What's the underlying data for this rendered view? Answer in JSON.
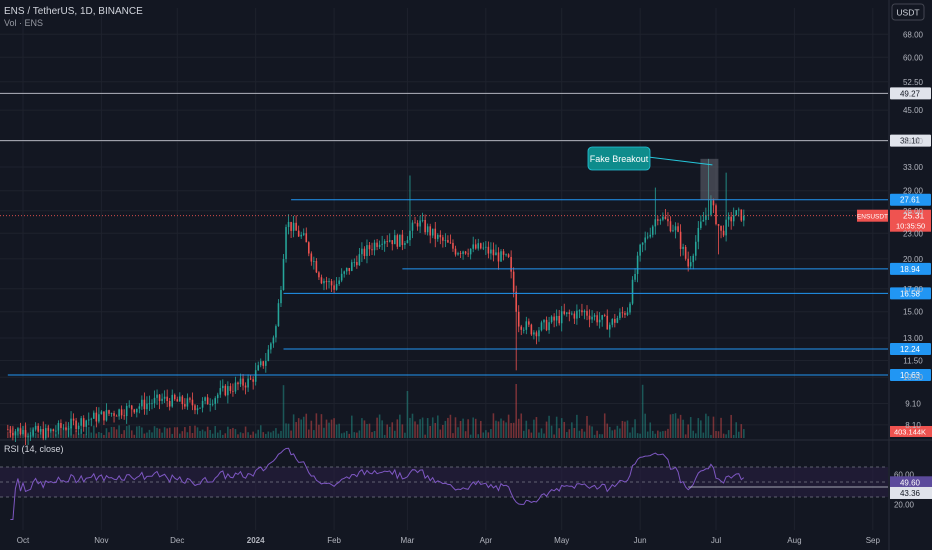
{
  "header": {
    "symbol_line": "ENS / TetherUS, 1D, BINANCE",
    "volume_label": "Vol · ENS",
    "currency_button": "USDT"
  },
  "colors": {
    "background": "#131722",
    "grid": "#1e222d",
    "up": "#26a69a",
    "down": "#ef5350",
    "level_line": "#2196f3",
    "ref_line": "#b2b5be",
    "rsi_line": "#7e57c2",
    "rsi_band": "#2a1f44",
    "callout": "#0e8c8c",
    "axis_text": "#b2b5be"
  },
  "chart_data": {
    "type": "candlestick",
    "symbol": "ENSUSDT",
    "price_axis": {
      "scale": "log",
      "ticks": [
        "68.00",
        "60.00",
        "52.50",
        "45.00",
        "38.00",
        "33.00",
        "29.00",
        "26.00",
        "23.00",
        "20.00",
        "17.00",
        "15.00",
        "13.00",
        "11.50",
        "10.50",
        "9.10",
        "8.10"
      ]
    },
    "time_axis": {
      "ticks": [
        "Oct",
        "Nov",
        "Dec",
        "2024",
        "Feb",
        "Mar",
        "Apr",
        "May",
        "Jun",
        "Jul",
        "Aug",
        "Sep"
      ]
    },
    "horizontal_levels": [
      {
        "value": 49.27,
        "label": "49.27",
        "style": "gray-full"
      },
      {
        "value": 38.1,
        "label": "38.10",
        "style": "gray-full"
      },
      {
        "value": 27.61,
        "label": "27.61",
        "style": "blue",
        "start": "2024-01-15"
      },
      {
        "value": 18.94,
        "label": "18.94",
        "style": "blue",
        "start": "2024-02-28"
      },
      {
        "value": 16.58,
        "label": "16.58",
        "style": "blue",
        "start": "2024-01-12"
      },
      {
        "value": 12.24,
        "label": "12.24",
        "style": "blue",
        "start": "2024-01-12"
      },
      {
        "value": 10.63,
        "label": "10.63",
        "style": "blue",
        "start": "2023-09-25"
      }
    ],
    "last_price": {
      "value": 25.31,
      "label": "25.31",
      "symbol_tag": "ENSUSDT",
      "countdown": "10:35:50"
    },
    "volume_label": "403.144K",
    "annotation": {
      "text": "Fake Breakout",
      "date": "2024-06-28",
      "low": 27.61,
      "high": 34.5
    },
    "anchors": [
      {
        "date": "2023-09-25",
        "close": 7.9
      },
      {
        "date": "2023-10-10",
        "close": 7.75
      },
      {
        "date": "2023-10-25",
        "close": 8.3
      },
      {
        "date": "2023-11-10",
        "close": 8.8
      },
      {
        "date": "2023-11-25",
        "close": 9.3
      },
      {
        "date": "2023-12-10",
        "close": 9.0
      },
      {
        "date": "2023-12-20",
        "close": 9.8
      },
      {
        "date": "2023-12-30",
        "close": 10.3
      },
      {
        "date": "2024-01-05",
        "close": 11.6
      },
      {
        "date": "2024-01-09",
        "close": 13.8
      },
      {
        "date": "2024-01-11",
        "close": 17.5
      },
      {
        "date": "2024-01-13",
        "close": 24.5
      },
      {
        "date": "2024-01-20",
        "close": 22.3
      },
      {
        "date": "2024-01-27",
        "close": 18.0
      },
      {
        "date": "2024-02-01",
        "close": 17.2
      },
      {
        "date": "2024-02-10",
        "close": 20.0
      },
      {
        "date": "2024-02-20",
        "close": 22.5
      },
      {
        "date": "2024-02-28",
        "close": 22.0
      },
      {
        "date": "2024-03-05",
        "close": 24.5
      },
      {
        "date": "2024-03-12",
        "close": 22.6
      },
      {
        "date": "2024-03-20",
        "close": 21.0
      },
      {
        "date": "2024-03-30",
        "close": 21.2
      },
      {
        "date": "2024-04-10",
        "close": 19.8
      },
      {
        "date": "2024-04-14",
        "close": 14.2
      },
      {
        "date": "2024-04-20",
        "close": 13.5
      },
      {
        "date": "2024-05-01",
        "close": 14.6
      },
      {
        "date": "2024-05-10",
        "close": 15.0
      },
      {
        "date": "2024-05-20",
        "close": 14.0
      },
      {
        "date": "2024-05-27",
        "close": 15.2
      },
      {
        "date": "2024-06-01",
        "close": 21.0
      },
      {
        "date": "2024-06-08",
        "close": 25.5
      },
      {
        "date": "2024-06-15",
        "close": 23.5
      },
      {
        "date": "2024-06-20",
        "close": 19.3
      },
      {
        "date": "2024-06-25",
        "close": 24.0
      },
      {
        "date": "2024-06-29",
        "close": 27.0
      },
      {
        "date": "2024-07-03",
        "close": 23.0
      },
      {
        "date": "2024-07-08",
        "close": 25.5
      },
      {
        "date": "2024-07-12",
        "close": 25.31
      }
    ],
    "rsi": {
      "label": "RSI (14, close)",
      "current": 49.6,
      "ma": 43.36,
      "bands": [
        70,
        30
      ],
      "ticks": [
        "60.00",
        "40.00",
        "20.00"
      ],
      "values_labels": [
        "49.60",
        "43.36"
      ],
      "support_line": {
        "value": 43.36,
        "start": "2024-06-20"
      }
    }
  }
}
